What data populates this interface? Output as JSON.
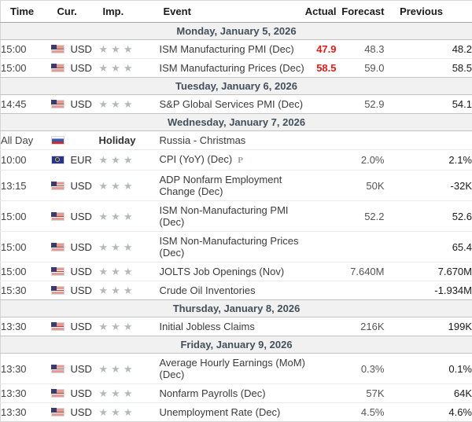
{
  "colors": {
    "actual_red": "#dc1c1c",
    "day_header_bg": "#f1f1f1",
    "day_header_text": "#43505c",
    "star_gray": "#b6b8ba"
  },
  "icons": {
    "star": "★",
    "preliminary_marker": "P"
  },
  "table": {
    "columns": [
      "Time",
      "Cur.",
      "Imp.",
      "Event",
      "Actual",
      "Forecast",
      "Previous"
    ]
  },
  "days": [
    {
      "label": "Monday, January 5, 2026",
      "rows": [
        {
          "time": "15:00",
          "flag": "us",
          "currency": "USD",
          "stars": 3,
          "event": "ISM Manufacturing PMI (Dec)",
          "actual": "47.9",
          "actual_color": "red",
          "forecast": "48.3",
          "previous": "48.2"
        },
        {
          "time": "15:00",
          "flag": "us",
          "currency": "USD",
          "stars": 3,
          "event": "ISM Manufacturing Prices (Dec)",
          "actual": "58.5",
          "actual_color": "red",
          "forecast": "59.0",
          "previous": "58.5"
        }
      ]
    },
    {
      "label": "Tuesday, January 6, 2026",
      "rows": [
        {
          "time": "14:45",
          "flag": "us",
          "currency": "USD",
          "stars": 3,
          "event": "S&P Global Services PMI (Dec)",
          "actual": "",
          "forecast": "52.9",
          "previous": "54.1"
        }
      ]
    },
    {
      "label": "Wednesday, January 7, 2026",
      "rows": [
        {
          "time": "All Day",
          "flag": "ru",
          "currency": "",
          "holiday": "Holiday",
          "event": "Russia - Christmas",
          "actual": "",
          "forecast": "",
          "previous": ""
        },
        {
          "time": "10:00",
          "flag": "eu",
          "currency": "EUR",
          "stars": 3,
          "event": "CPI (YoY) (Dec)",
          "event_marker": "P",
          "actual": "",
          "forecast": "2.0%",
          "previous": "2.1%"
        },
        {
          "time": "13:15",
          "flag": "us",
          "currency": "USD",
          "stars": 3,
          "event": "ADP Nonfarm Employment Change (Dec)",
          "actual": "",
          "forecast": "50K",
          "previous": "-32K"
        },
        {
          "time": "15:00",
          "flag": "us",
          "currency": "USD",
          "stars": 3,
          "event": "ISM Non-Manufacturing PMI (Dec)",
          "actual": "",
          "forecast": "52.2",
          "previous": "52.6"
        },
        {
          "time": "15:00",
          "flag": "us",
          "currency": "USD",
          "stars": 3,
          "event": "ISM Non-Manufacturing Prices (Dec)",
          "actual": "",
          "forecast": "",
          "previous": "65.4"
        },
        {
          "time": "15:00",
          "flag": "us",
          "currency": "USD",
          "stars": 3,
          "event": "JOLTS Job Openings (Nov)",
          "actual": "",
          "forecast": "7.640M",
          "previous": "7.670M"
        },
        {
          "time": "15:30",
          "flag": "us",
          "currency": "USD",
          "stars": 3,
          "event": "Crude Oil Inventories",
          "actual": "",
          "forecast": "",
          "previous": "-1.934M"
        }
      ]
    },
    {
      "label": "Thursday, January 8, 2026",
      "rows": [
        {
          "time": "13:30",
          "flag": "us",
          "currency": "USD",
          "stars": 3,
          "event": "Initial Jobless Claims",
          "actual": "",
          "forecast": "216K",
          "previous": "199K"
        }
      ]
    },
    {
      "label": "Friday, January 9, 2026",
      "rows": [
        {
          "time": "13:30",
          "flag": "us",
          "currency": "USD",
          "stars": 3,
          "event": "Average Hourly Earnings (MoM) (Dec)",
          "actual": "",
          "forecast": "0.3%",
          "previous": "0.1%"
        },
        {
          "time": "13:30",
          "flag": "us",
          "currency": "USD",
          "stars": 3,
          "event": "Nonfarm Payrolls (Dec)",
          "actual": "",
          "forecast": "57K",
          "previous": "64K"
        },
        {
          "time": "13:30",
          "flag": "us",
          "currency": "USD",
          "stars": 3,
          "event": "Unemployment Rate (Dec)",
          "actual": "",
          "forecast": "4.5%",
          "previous": "4.6%"
        }
      ]
    }
  ]
}
